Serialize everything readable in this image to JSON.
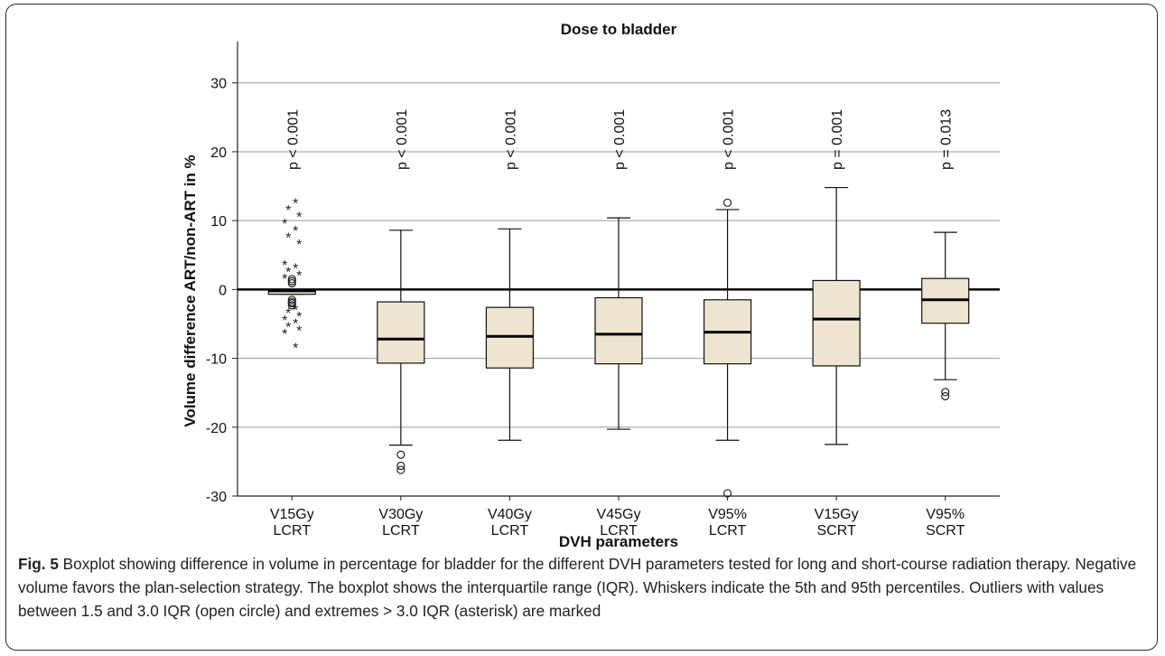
{
  "chart_data": {
    "type": "boxplot",
    "title": "Dose to bladder",
    "xlabel": "DVH parameters",
    "ylabel": "Volume difference ART/non-ART in %",
    "ylim": [
      -30,
      36
    ],
    "yticks": [
      30,
      20,
      10,
      0,
      -10,
      -20,
      -30
    ],
    "grid": true,
    "reference_line": 0,
    "categories": [
      {
        "line1": "V15Gy",
        "line2": "LCRT"
      },
      {
        "line1": "V30Gy",
        "line2": "LCRT"
      },
      {
        "line1": "V40Gy",
        "line2": "LCRT"
      },
      {
        "line1": "V45Gy",
        "line2": "LCRT"
      },
      {
        "line1": "V95%",
        "line2": "LCRT"
      },
      {
        "line1": "V15Gy",
        "line2": "SCRT"
      },
      {
        "line1": "V95%",
        "line2": "SCRT"
      }
    ],
    "annotations": [
      "p < 0.001",
      "p < 0.001",
      "p < 0.001",
      "p < 0.001",
      "p < 0.001",
      "p = 0.001",
      "p = 0.013"
    ],
    "boxes": [
      {
        "q1": -0.7,
        "median": -0.2,
        "q3": 0.0,
        "whisker_low": -0.7,
        "whisker_high": 0.0,
        "outliers": [
          1.5,
          1.2,
          0.9,
          -1.5,
          -1.8,
          -2.0,
          -2.3
        ],
        "extremes": [
          13.0,
          12.0,
          11.0,
          10.0,
          9.0,
          8.0,
          7.0,
          4.0,
          3.5,
          3.0,
          2.5,
          2.0,
          -2.5,
          -3.0,
          -3.5,
          -4.0,
          -4.5,
          -5.0,
          -5.5,
          -6.0,
          -8.0
        ]
      },
      {
        "q1": -10.7,
        "median": -7.2,
        "q3": -1.8,
        "whisker_low": -22.6,
        "whisker_high": 8.6,
        "outliers": [
          -24.0,
          -25.6,
          -26.2
        ],
        "extremes": []
      },
      {
        "q1": -11.4,
        "median": -6.8,
        "q3": -2.6,
        "whisker_low": -21.9,
        "whisker_high": 8.8,
        "outliers": [],
        "extremes": []
      },
      {
        "q1": -10.8,
        "median": -6.5,
        "q3": -1.2,
        "whisker_low": -20.3,
        "whisker_high": 10.4,
        "outliers": [],
        "extremes": []
      },
      {
        "q1": -10.8,
        "median": -6.2,
        "q3": -1.5,
        "whisker_low": -21.9,
        "whisker_high": 11.6,
        "outliers": [
          12.6,
          -29.6
        ],
        "extremes": []
      },
      {
        "q1": -11.1,
        "median": -4.3,
        "q3": 1.3,
        "whisker_low": -22.5,
        "whisker_high": 14.8,
        "outliers": [],
        "extremes": []
      },
      {
        "q1": -4.9,
        "median": -1.5,
        "q3": 1.6,
        "whisker_low": -13.1,
        "whisker_high": 8.3,
        "outliers": [
          -14.9,
          -15.5
        ],
        "extremes": []
      }
    ],
    "box_color": "#ede5d0"
  },
  "caption": {
    "fig_label": "Fig. 5",
    "text": " Boxplot showing difference in volume in percentage for bladder for the different DVH parameters tested for long and short-course radiation therapy. Negative volume favors the plan-selection strategy. The boxplot shows the interquartile range (IQR). Whiskers indicate the 5th and 95th percentiles. Outliers with values between 1.5 and 3.0 IQR (open circle) and extremes > 3.0 IQR (asterisk) are marked"
  }
}
